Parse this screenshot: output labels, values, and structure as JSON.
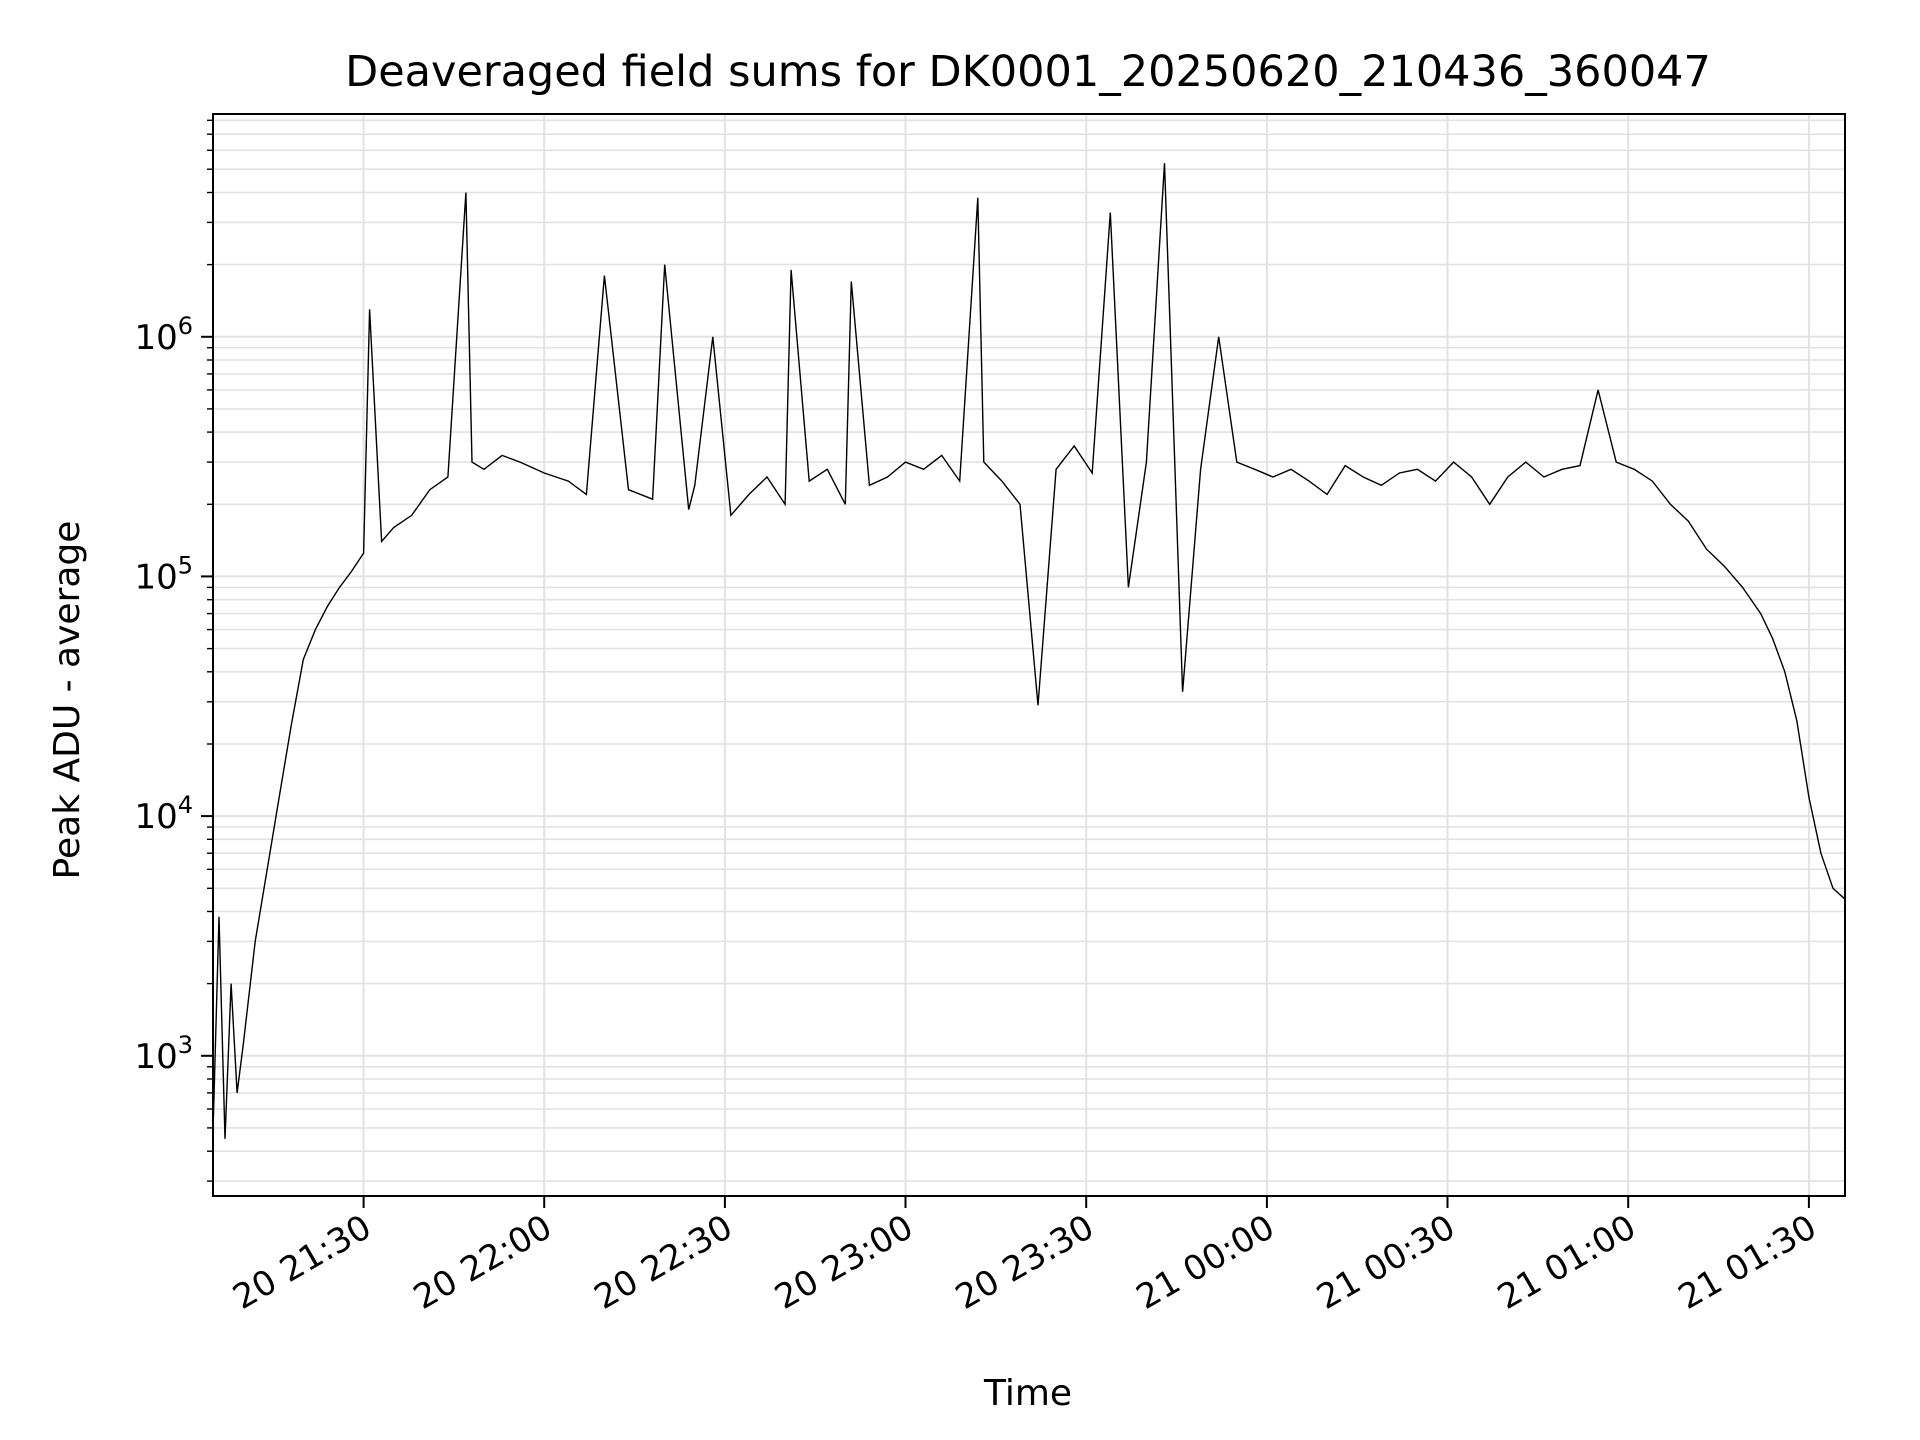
{
  "chart_data": {
    "type": "line",
    "title": "Deaveraged field sums for DK0001_20250620_210436_360047",
    "xlabel": "Time",
    "ylabel": "Peak ADU - average",
    "yscale": "log",
    "grid": true,
    "line_color": "#000000",
    "x_ticks": [
      "20 21:30",
      "20 22:00",
      "20 22:30",
      "20 23:00",
      "20 23:30",
      "21 00:00",
      "21 00:30",
      "21 01:00",
      "21 01:30"
    ],
    "y_ticks": [
      {
        "base": "10",
        "exp": "3"
      },
      {
        "base": "10",
        "exp": "4"
      },
      {
        "base": "10",
        "exp": "5"
      },
      {
        "base": "10",
        "exp": "6"
      }
    ],
    "xlim": [
      "2025-06-20 21:05",
      "2025-06-21 01:36"
    ],
    "ylim": [
      260,
      8500000
    ],
    "series": [
      {
        "x": [
          "2025-06-20 21:05",
          "2025-06-20 21:06",
          "2025-06-20 21:07",
          "2025-06-20 21:08",
          "2025-06-20 21:09",
          "2025-06-20 21:10",
          "2025-06-20 21:12",
          "2025-06-20 21:14",
          "2025-06-20 21:16",
          "2025-06-20 21:18",
          "2025-06-20 21:20",
          "2025-06-20 21:22",
          "2025-06-20 21:24",
          "2025-06-20 21:26",
          "2025-06-20 21:28",
          "2025-06-20 21:30",
          "2025-06-20 21:31",
          "2025-06-20 21:33",
          "2025-06-20 21:35",
          "2025-06-20 21:38",
          "2025-06-20 21:41",
          "2025-06-20 21:44",
          "2025-06-20 21:47",
          "2025-06-20 21:48",
          "2025-06-20 21:50",
          "2025-06-20 21:53",
          "2025-06-20 21:56",
          "2025-06-20 22:00",
          "2025-06-20 22:04",
          "2025-06-20 22:07",
          "2025-06-20 22:10",
          "2025-06-20 22:14",
          "2025-06-20 22:18",
          "2025-06-20 22:20",
          "2025-06-20 22:24",
          "2025-06-20 22:25",
          "2025-06-20 22:28",
          "2025-06-20 22:31",
          "2025-06-20 22:34",
          "2025-06-20 22:37",
          "2025-06-20 22:40",
          "2025-06-20 22:41",
          "2025-06-20 22:44",
          "2025-06-20 22:47",
          "2025-06-20 22:50",
          "2025-06-20 22:51",
          "2025-06-20 22:54",
          "2025-06-20 22:57",
          "2025-06-20 23:00",
          "2025-06-20 23:03",
          "2025-06-20 23:06",
          "2025-06-20 23:09",
          "2025-06-20 23:12",
          "2025-06-20 23:13",
          "2025-06-20 23:16",
          "2025-06-20 23:19",
          "2025-06-20 23:22",
          "2025-06-20 23:25",
          "2025-06-20 23:28",
          "2025-06-20 23:31",
          "2025-06-20 23:34",
          "2025-06-20 23:37",
          "2025-06-20 23:40",
          "2025-06-20 23:43",
          "2025-06-20 23:46",
          "2025-06-20 23:49",
          "2025-06-20 23:52",
          "2025-06-20 23:55",
          "2025-06-20 23:58",
          "2025-06-21 00:01",
          "2025-06-21 00:04",
          "2025-06-21 00:07",
          "2025-06-21 00:10",
          "2025-06-21 00:13",
          "2025-06-21 00:16",
          "2025-06-21 00:19",
          "2025-06-21 00:22",
          "2025-06-21 00:25",
          "2025-06-21 00:28",
          "2025-06-21 00:31",
          "2025-06-21 00:34",
          "2025-06-21 00:37",
          "2025-06-21 00:40",
          "2025-06-21 00:43",
          "2025-06-21 00:46",
          "2025-06-21 00:49",
          "2025-06-21 00:52",
          "2025-06-21 00:55",
          "2025-06-21 00:58",
          "2025-06-21 01:01",
          "2025-06-21 01:04",
          "2025-06-21 01:07",
          "2025-06-21 01:10",
          "2025-06-21 01:13",
          "2025-06-21 01:16",
          "2025-06-21 01:19",
          "2025-06-21 01:22",
          "2025-06-21 01:24",
          "2025-06-21 01:26",
          "2025-06-21 01:28",
          "2025-06-21 01:30",
          "2025-06-21 01:32",
          "2025-06-21 01:34",
          "2025-06-21 01:36"
        ],
        "y": [
          480,
          3800,
          450,
          2000,
          700,
          1100,
          3000,
          6000,
          12000,
          24000,
          45000,
          60000,
          75000,
          90000,
          105000,
          125000,
          1300000,
          140000,
          160000,
          180000,
          230000,
          260000,
          4000000,
          300000,
          280000,
          320000,
          300000,
          270000,
          250000,
          220000,
          1800000,
          230000,
          210000,
          2000000,
          190000,
          240000,
          1000000,
          180000,
          220000,
          260000,
          200000,
          1900000,
          250000,
          280000,
          200000,
          1700000,
          240000,
          260000,
          300000,
          280000,
          320000,
          250000,
          3800000,
          300000,
          250000,
          200000,
          29000,
          280000,
          350000,
          270000,
          3300000,
          90000,
          300000,
          5300000,
          33000,
          280000,
          1000000,
          300000,
          280000,
          260000,
          280000,
          250000,
          220000,
          290000,
          260000,
          240000,
          270000,
          280000,
          250000,
          300000,
          260000,
          200000,
          260000,
          300000,
          260000,
          280000,
          290000,
          600000,
          300000,
          280000,
          250000,
          200000,
          170000,
          130000,
          110000,
          90000,
          70000,
          55000,
          40000,
          25000,
          12000,
          7000,
          5000,
          4500
        ]
      }
    ]
  }
}
